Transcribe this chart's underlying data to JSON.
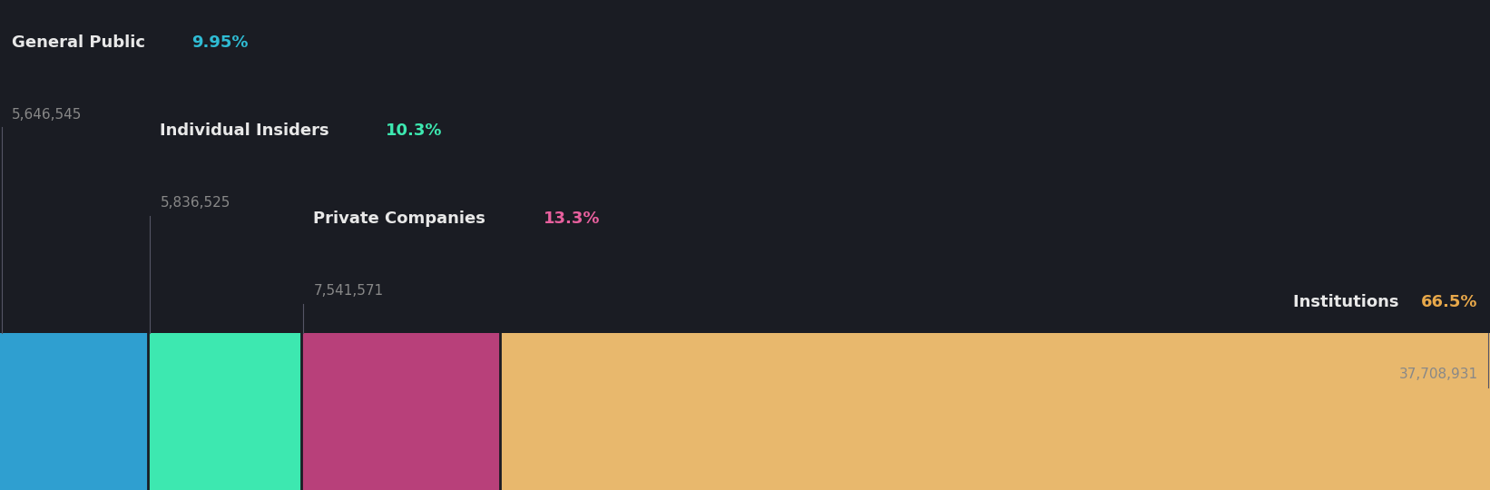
{
  "background_color": "#1a1c23",
  "categories": [
    "General Public",
    "Individual Insiders",
    "Private Companies",
    "Institutions"
  ],
  "percentages": [
    9.95,
    10.3,
    13.3,
    66.5
  ],
  "values": [
    "5,646,545",
    "5,836,525",
    "7,541,571",
    "37,708,931"
  ],
  "pct_labels": [
    "9.95%",
    "10.3%",
    "13.3%",
    "66.5%"
  ],
  "bar_colors": [
    "#2f9fd0",
    "#3de8b0",
    "#b8407a",
    "#e8b86d"
  ],
  "label_colors": [
    "#2fbcd4",
    "#3de8b0",
    "#e8609e",
    "#e8a84a"
  ],
  "figsize": [
    16.42,
    5.4
  ],
  "name_fontsize": 13,
  "value_fontsize": 11,
  "name_color": "#e8e8e8",
  "value_color": "#888888"
}
